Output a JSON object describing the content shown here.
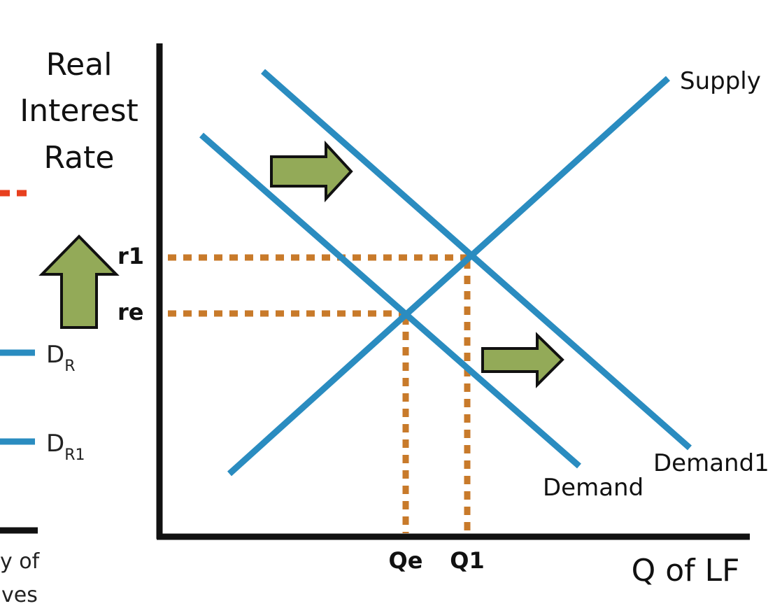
{
  "y_axis_title_lines": [
    "Real",
    "Interest",
    "Rate"
  ],
  "x_axis_title": "Q of LF",
  "curves": {
    "supply": "Supply",
    "demand": "Demand",
    "demand1": "Demand1"
  },
  "ticks": {
    "r1": "r1",
    "re": "re",
    "qe": "Qe",
    "q1": "Q1"
  },
  "legend": {
    "dr_main": "D",
    "dr_sub": "R",
    "dr1_main": "D",
    "dr1_sub": "R1",
    "cut_line1": "y of",
    "cut_line2": "ves"
  },
  "colors": {
    "curve": "#2a8cc0",
    "guide": "#c87a2a",
    "arrow_fill": "#93aa58",
    "axis": "#111111",
    "legend_red": "#e8401f"
  },
  "icons": [
    "right-arrow-icon",
    "up-arrow-icon"
  ]
}
